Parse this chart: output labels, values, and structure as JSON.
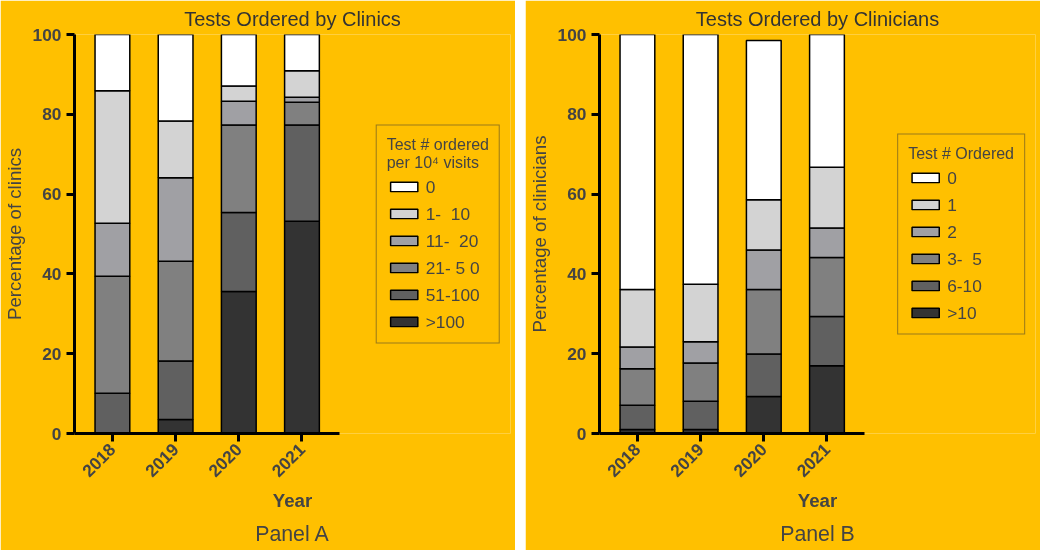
{
  "chart_data": [
    {
      "type": "bar",
      "title": "Tests Ordered by Clinics",
      "xlabel": "Year",
      "ylabel": "Percentage of clinics",
      "legend_title": "Test # ordered per 10⁴ visits",
      "categories": [
        "2018",
        "2019",
        "2020",
        "2021"
      ],
      "stacked": true,
      "ylim": [
        0,
        100
      ],
      "yticks": [
        0,
        20,
        40,
        60,
        80,
        100
      ],
      "grid": false,
      "legend": "right",
      "annotations": [
        "Panel A"
      ],
      "series": [
        {
          "name": ">100",
          "color": "#333333",
          "values": [
            0,
            3.5,
            35.6,
            53.2
          ]
        },
        {
          "name": "51-100",
          "color": "#606060",
          "values": [
            10.1,
            14.7,
            19.8,
            24.1
          ]
        },
        {
          "name": "21- 5 0",
          "color": "#808080",
          "values": [
            29.3,
            25.0,
            21.9,
            5.7
          ]
        },
        {
          "name": "11-  20",
          "color": "#a0a0a4",
          "values": [
            13.3,
            20.9,
            6.0,
            1.3
          ]
        },
        {
          "name": "1-  10",
          "color": "#d3d3d3",
          "values": [
            33.2,
            14.2,
            3.8,
            6.6
          ]
        },
        {
          "name": "0",
          "color": "#ffffff",
          "values": [
            14.1,
            21.7,
            12.9,
            9.1
          ]
        }
      ]
    },
    {
      "type": "bar",
      "title": "Tests Ordered by Clinicians",
      "xlabel": "Year",
      "ylabel": "Percentage of clinicians",
      "legend_title": "Test # Ordered",
      "categories": [
        "2018",
        "2019",
        "2020",
        "2021"
      ],
      "stacked": true,
      "ylim": [
        0,
        100
      ],
      "yticks": [
        0,
        20,
        40,
        60,
        80,
        100
      ],
      "grid": false,
      "legend": "right",
      "annotations": [
        "Panel B"
      ],
      "series": [
        {
          "name": ">10",
          "color": "#333333",
          "values": [
            1.0,
            1.0,
            9.3,
            17.0
          ]
        },
        {
          "name": "6-10",
          "color": "#606060",
          "values": [
            6.1,
            7.1,
            10.6,
            12.3
          ]
        },
        {
          "name": "3-  5",
          "color": "#808080",
          "values": [
            9.1,
            9.6,
            16.2,
            14.8
          ]
        },
        {
          "name": "2",
          "color": "#a0a0a4",
          "values": [
            5.5,
            5.3,
            9.9,
            7.4
          ]
        },
        {
          "name": "1",
          "color": "#d3d3d3",
          "values": [
            14.4,
            14.4,
            12.6,
            15.2
          ]
        },
        {
          "name": "0",
          "color": "#ffffff",
          "values": [
            63.9,
            62.6,
            39.9,
            33.3
          ]
        }
      ]
    }
  ]
}
